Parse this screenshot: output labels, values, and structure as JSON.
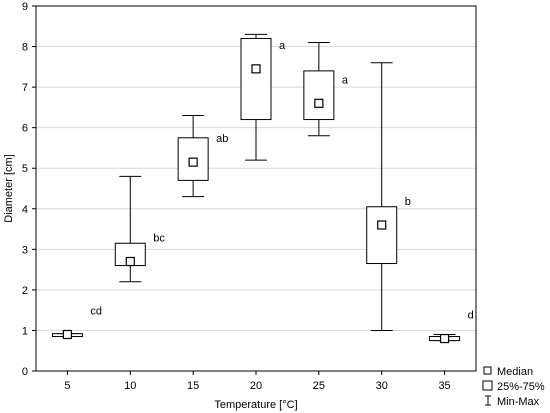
{
  "chart_data": {
    "type": "boxplot",
    "xlabel": "Temperature [°C]",
    "ylabel": "Diameter [cm]",
    "ylim": [
      0,
      9
    ],
    "yticks": [
      "0",
      "1",
      "2",
      "3",
      "4",
      "5",
      "6",
      "7",
      "8",
      "9"
    ],
    "grid": "horizontal",
    "legend_position": "bottom-right",
    "legend": [
      "Median",
      "25%-75%",
      "Min-Max"
    ],
    "categories": [
      "5",
      "10",
      "15",
      "20",
      "25",
      "30",
      "35"
    ],
    "boxes": [
      {
        "median": 0.9,
        "q1": 0.85,
        "q3": 0.92,
        "min": 0.85,
        "max": 0.92,
        "group": "cd"
      },
      {
        "median": 2.7,
        "q1": 2.6,
        "q3": 3.15,
        "min": 2.2,
        "max": 4.8,
        "group": "bc"
      },
      {
        "median": 5.15,
        "q1": 4.7,
        "q3": 5.75,
        "min": 4.3,
        "max": 6.3,
        "group": "ab"
      },
      {
        "median": 7.45,
        "q1": 6.2,
        "q3": 8.2,
        "min": 5.2,
        "max": 8.3,
        "group": "a"
      },
      {
        "median": 6.6,
        "q1": 6.2,
        "q3": 7.4,
        "min": 5.8,
        "max": 8.1,
        "group": "a"
      },
      {
        "median": 3.6,
        "q1": 2.65,
        "q3": 4.05,
        "min": 1.0,
        "max": 7.6,
        "group": "b"
      },
      {
        "median": 0.8,
        "q1": 0.75,
        "q3": 0.85,
        "min": 0.75,
        "max": 0.9,
        "group": "d"
      }
    ]
  }
}
